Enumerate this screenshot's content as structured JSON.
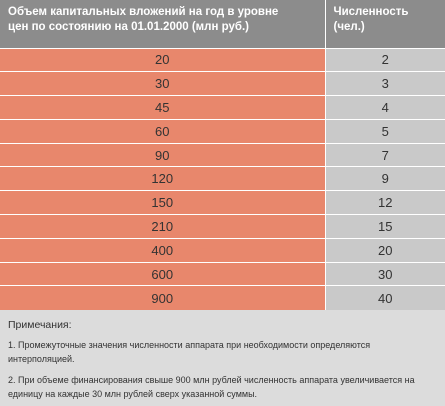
{
  "table": {
    "header": [
      "Объем капитальных вложений на год в уровне цен по состоянию на 01.01.2000 (млн руб.)",
      "Численность (чел.)"
    ],
    "rows": [
      [
        20,
        2
      ],
      [
        30,
        3
      ],
      [
        45,
        4
      ],
      [
        60,
        5
      ],
      [
        90,
        7
      ],
      [
        120,
        9
      ],
      [
        150,
        12
      ],
      [
        210,
        15
      ],
      [
        400,
        20
      ],
      [
        600,
        30
      ],
      [
        900,
        40
      ]
    ]
  },
  "notes": {
    "title": "Примечания:",
    "items": [
      "1. Промежуточные значения численности аппарата при необходимости определяются интерполяцией.",
      "2. При объеме финансирования свыше 900 млн рублей численность аппарата увеличивается на единицу на каждые 30 млн рублей сверх указанной суммы."
    ]
  }
}
